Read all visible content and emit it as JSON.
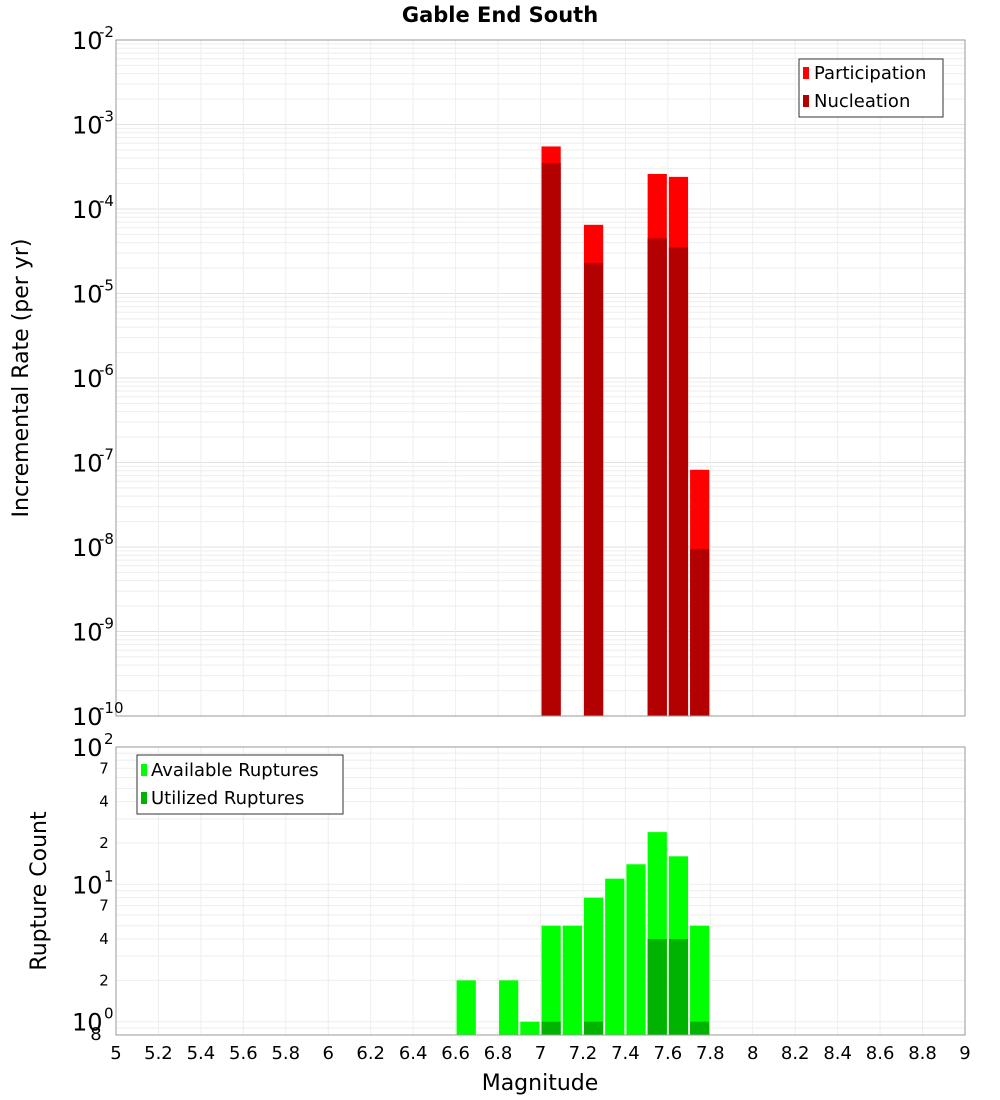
{
  "title": "Gable End South",
  "chart_data": [
    {
      "type": "bar",
      "ylabel": "Incremental Rate (per yr)",
      "yscale": "log",
      "ylim": [
        1e-10,
        0.01
      ],
      "y_tick_exponents": [
        -10,
        -9,
        -8,
        -7,
        -6,
        -5,
        -4,
        -3,
        -2
      ],
      "grid": true,
      "legend_position": "top-right",
      "x": [
        7.05,
        7.25,
        7.55,
        7.65,
        7.75
      ],
      "series": [
        {
          "name": "Participation",
          "color": "#ff0000",
          "values": [
            0.00055,
            6.5e-05,
            0.00026,
            0.00024,
            8.2e-08
          ]
        },
        {
          "name": "Nucleation",
          "color": "#b30000",
          "values": [
            0.00035,
            2.3e-05,
            4.5e-05,
            3.5e-05,
            9.5e-09
          ]
        }
      ]
    },
    {
      "type": "bar",
      "xlabel": "Magnitude",
      "ylabel": "Rupture Count",
      "yscale": "log",
      "ylim": [
        0.8,
        100
      ],
      "y_major_ticks": [
        {
          "value": 1,
          "base": "10",
          "exp": "0"
        },
        {
          "value": 10,
          "base": "10",
          "exp": "1"
        },
        {
          "value": 100,
          "base": "10",
          "exp": "2"
        }
      ],
      "y_minor_ticks": [
        {
          "value": 2,
          "label": "2"
        },
        {
          "value": 4,
          "label": "4"
        },
        {
          "value": 7,
          "label": "7"
        },
        {
          "value": 20,
          "label": "2"
        },
        {
          "value": 40,
          "label": "4"
        },
        {
          "value": 70,
          "label": "7"
        }
      ],
      "y_bottom_label": "8",
      "xlim": [
        5,
        9
      ],
      "x_ticks": [
        "5",
        "5.2",
        "5.4",
        "5.6",
        "5.8",
        "6",
        "6.2",
        "6.4",
        "6.6",
        "6.8",
        "7",
        "7.2",
        "7.4",
        "7.6",
        "7.8",
        "8",
        "8.2",
        "8.4",
        "8.6",
        "8.8",
        "9"
      ],
      "grid": true,
      "legend_position": "top-left",
      "x": [
        6.65,
        6.85,
        6.95,
        7.05,
        7.15,
        7.25,
        7.35,
        7.45,
        7.55,
        7.65,
        7.75
      ],
      "series": [
        {
          "name": "Available Ruptures",
          "color": "#00ff00",
          "values": [
            2,
            2,
            1,
            5,
            5,
            8,
            11,
            14,
            24,
            16,
            5
          ]
        },
        {
          "name": "Utilized Ruptures",
          "color": "#00b300",
          "values": [
            0,
            0,
            0,
            1,
            0,
            1,
            0,
            0,
            4,
            4,
            1
          ]
        }
      ]
    }
  ]
}
